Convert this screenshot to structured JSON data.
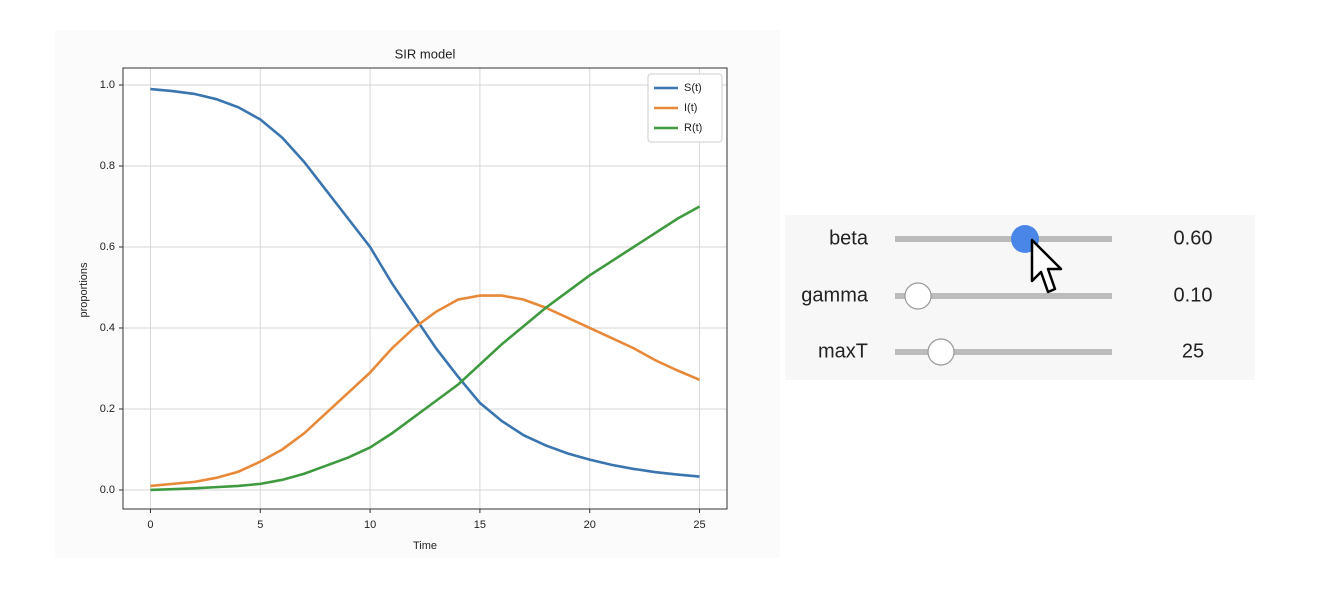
{
  "chart_data": {
    "type": "line",
    "title": "SIR model",
    "x_label": "Time",
    "y_label": "proportions",
    "x": [
      0,
      1,
      2,
      3,
      4,
      5,
      6,
      7,
      8,
      9,
      10,
      11,
      12,
      13,
      14,
      15,
      16,
      17,
      18,
      19,
      20,
      21,
      22,
      23,
      24,
      25
    ],
    "series": [
      {
        "name": "S(t)",
        "color": "#3a75b0",
        "values": [
          0.99,
          0.985,
          0.978,
          0.965,
          0.945,
          0.915,
          0.87,
          0.81,
          0.74,
          0.67,
          0.6,
          0.51,
          0.43,
          0.35,
          0.28,
          0.215,
          0.17,
          0.135,
          0.11,
          0.09,
          0.075,
          0.062,
          0.052,
          0.044,
          0.038,
          0.033
        ]
      },
      {
        "name": "I(t)",
        "color": "#e8893a",
        "values": [
          0.01,
          0.015,
          0.02,
          0.03,
          0.045,
          0.07,
          0.1,
          0.14,
          0.19,
          0.24,
          0.29,
          0.35,
          0.4,
          0.44,
          0.47,
          0.48,
          0.48,
          0.47,
          0.45,
          0.425,
          0.4,
          0.375,
          0.35,
          0.32,
          0.295,
          0.272
        ]
      },
      {
        "name": "R(t)",
        "color": "#3f9a3f",
        "values": [
          0,
          0.002,
          0.004,
          0.007,
          0.01,
          0.015,
          0.025,
          0.04,
          0.06,
          0.08,
          0.105,
          0.14,
          0.18,
          0.22,
          0.26,
          0.31,
          0.36,
          0.405,
          0.45,
          0.49,
          0.53,
          0.565,
          0.6,
          0.635,
          0.67,
          0.7
        ]
      }
    ],
    "xlim": [
      -1.25,
      26.25
    ],
    "ylim": [
      -0.047,
      1.042
    ],
    "xticks": [
      0,
      5,
      10,
      15,
      20,
      25
    ],
    "yticks": [
      {
        "value": 0,
        "label": "0.0"
      },
      0.2,
      0.4,
      0.6,
      0.8,
      {
        "value": 1,
        "label": "1.0"
      }
    ],
    "grid": true,
    "legend": "upper right"
  },
  "controls": [
    {
      "label": "beta",
      "value": "0.60"
    },
    {
      "label": "gamma",
      "value": "0.10"
    },
    {
      "label": "maxT",
      "value": "25"
    }
  ]
}
